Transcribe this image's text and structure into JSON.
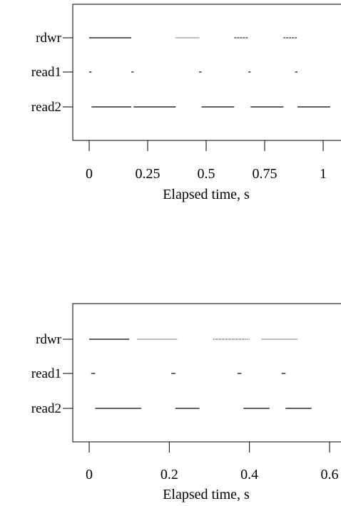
{
  "chart_data": [
    {
      "type": "timeline",
      "xlabel": "Elapsed time, s",
      "xlim": [
        0,
        1.08
      ],
      "x_ticks": [
        {
          "value": 0,
          "label": "0"
        },
        {
          "value": 0.25,
          "label": "0.25"
        },
        {
          "value": 0.5,
          "label": "0.5"
        },
        {
          "value": 0.75,
          "label": "0.75"
        },
        {
          "value": 1,
          "label": "1"
        }
      ],
      "categories": [
        "rdwr",
        "read1",
        "read2"
      ],
      "series": [
        {
          "name": "rdwr",
          "segments": [
            {
              "start": 0.0,
              "end": 0.18,
              "style": "solid"
            },
            {
              "start": 0.37,
              "end": 0.47,
              "style": "dotted"
            },
            {
              "start": 0.62,
              "end": 0.68,
              "style": "dashed"
            },
            {
              "start": 0.83,
              "end": 0.89,
              "style": "dashed"
            }
          ]
        },
        {
          "name": "read1",
          "segments": [
            {
              "start": 0.0,
              "end": 0.01,
              "style": "solid"
            },
            {
              "start": 0.18,
              "end": 0.19,
              "style": "solid"
            },
            {
              "start": 0.47,
              "end": 0.48,
              "style": "solid"
            },
            {
              "start": 0.68,
              "end": 0.69,
              "style": "solid"
            },
            {
              "start": 0.88,
              "end": 0.89,
              "style": "solid"
            }
          ]
        },
        {
          "name": "read2",
          "segments": [
            {
              "start": 0.01,
              "end": 0.18,
              "style": "solid"
            },
            {
              "start": 0.19,
              "end": 0.37,
              "style": "solid"
            },
            {
              "start": 0.48,
              "end": 0.62,
              "style": "solid"
            },
            {
              "start": 0.69,
              "end": 0.83,
              "style": "solid"
            },
            {
              "start": 0.89,
              "end": 1.03,
              "style": "solid"
            }
          ]
        }
      ]
    },
    {
      "type": "timeline",
      "xlabel": "Elapsed time, s",
      "xlim": [
        0,
        0.63
      ],
      "x_ticks": [
        {
          "value": 0,
          "label": "0"
        },
        {
          "value": 0.2,
          "label": "0.2"
        },
        {
          "value": 0.4,
          "label": "0.4"
        },
        {
          "value": 0.6,
          "label": "0.6"
        }
      ],
      "categories": [
        "rdwr",
        "read1",
        "read2"
      ],
      "series": [
        {
          "name": "rdwr",
          "segments": [
            {
              "start": 0.0,
              "end": 0.1,
              "style": "solid"
            },
            {
              "start": 0.12,
              "end": 0.22,
              "style": "dotted"
            },
            {
              "start": 0.31,
              "end": 0.4,
              "style": "dotted"
            },
            {
              "start": 0.43,
              "end": 0.52,
              "style": "dotted"
            }
          ]
        },
        {
          "name": "read1",
          "segments": [
            {
              "start": 0.005,
              "end": 0.015,
              "style": "solid"
            },
            {
              "start": 0.205,
              "end": 0.215,
              "style": "solid"
            },
            {
              "start": 0.37,
              "end": 0.38,
              "style": "solid"
            },
            {
              "start": 0.48,
              "end": 0.49,
              "style": "solid"
            }
          ]
        },
        {
          "name": "read2",
          "segments": [
            {
              "start": 0.015,
              "end": 0.13,
              "style": "solid"
            },
            {
              "start": 0.215,
              "end": 0.275,
              "style": "solid"
            },
            {
              "start": 0.385,
              "end": 0.45,
              "style": "solid"
            },
            {
              "start": 0.49,
              "end": 0.555,
              "style": "solid"
            }
          ]
        }
      ]
    }
  ]
}
